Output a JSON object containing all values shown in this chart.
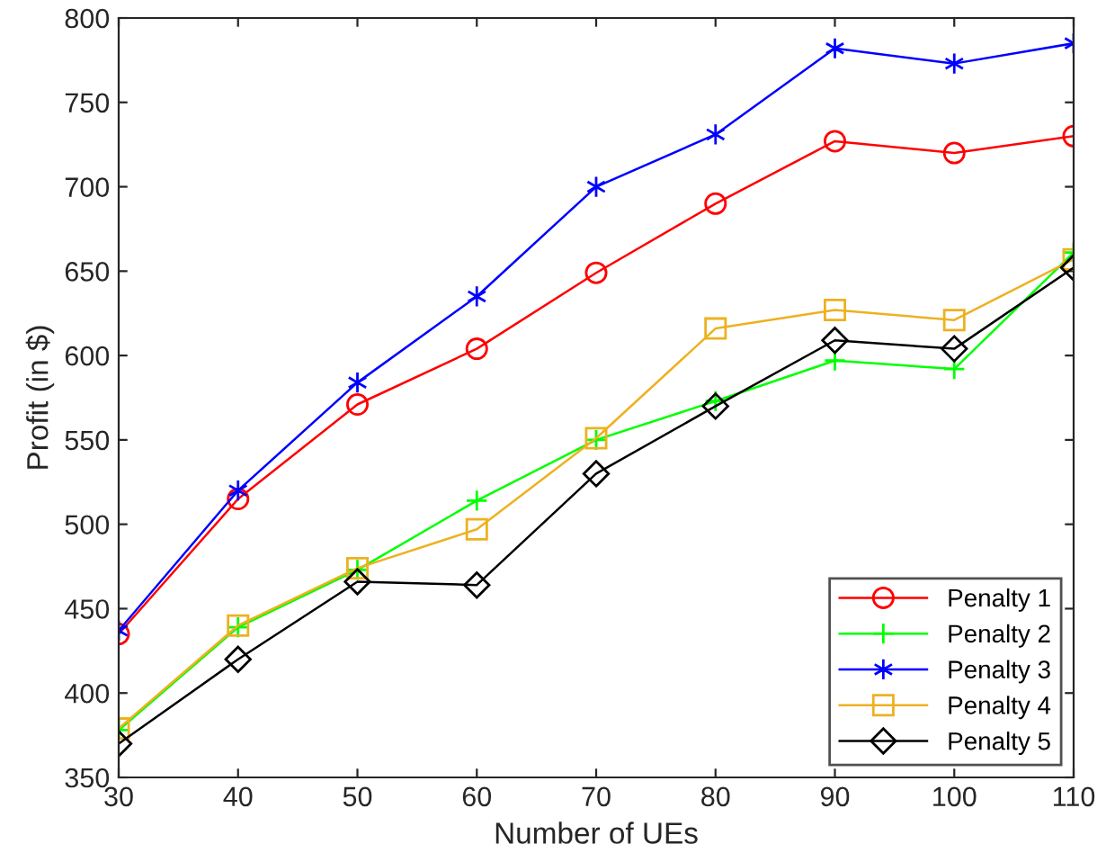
{
  "chart_data": {
    "type": "line",
    "xlabel": "Number of UEs",
    "ylabel": "Profit (in $)",
    "x": [
      30,
      40,
      50,
      60,
      70,
      80,
      90,
      100,
      110
    ],
    "xlim": [
      30,
      110
    ],
    "xticks": [
      30,
      40,
      50,
      60,
      70,
      80,
      90,
      100,
      110
    ],
    "ylim": [
      350,
      800
    ],
    "yticks": [
      350,
      400,
      450,
      500,
      550,
      600,
      650,
      700,
      750,
      800
    ],
    "grid": false,
    "legend": "bottom right",
    "series": [
      {
        "name": "Penalty 1",
        "color": "#ff0000",
        "marker": "circle",
        "values": [
          435,
          515,
          571,
          604,
          649,
          690,
          727,
          720,
          730
        ]
      },
      {
        "name": "Penalty 2",
        "color": "#00ff00",
        "marker": "plus",
        "values": [
          378,
          439,
          473,
          514,
          550,
          573,
          597,
          592,
          661
        ]
      },
      {
        "name": "Penalty 3",
        "color": "#0000ff",
        "marker": "cross",
        "values": [
          437,
          520,
          584,
          635,
          700,
          731,
          782,
          773,
          785
        ]
      },
      {
        "name": "Penalty 4",
        "color": "#edb120",
        "marker": "square",
        "values": [
          379,
          440,
          474,
          497,
          551,
          616,
          627,
          621,
          657
        ]
      },
      {
        "name": "Penalty 5",
        "color": "#000000",
        "marker": "diamond",
        "values": [
          370,
          420,
          466,
          464,
          530,
          570,
          609,
          604,
          652
        ]
      }
    ]
  }
}
